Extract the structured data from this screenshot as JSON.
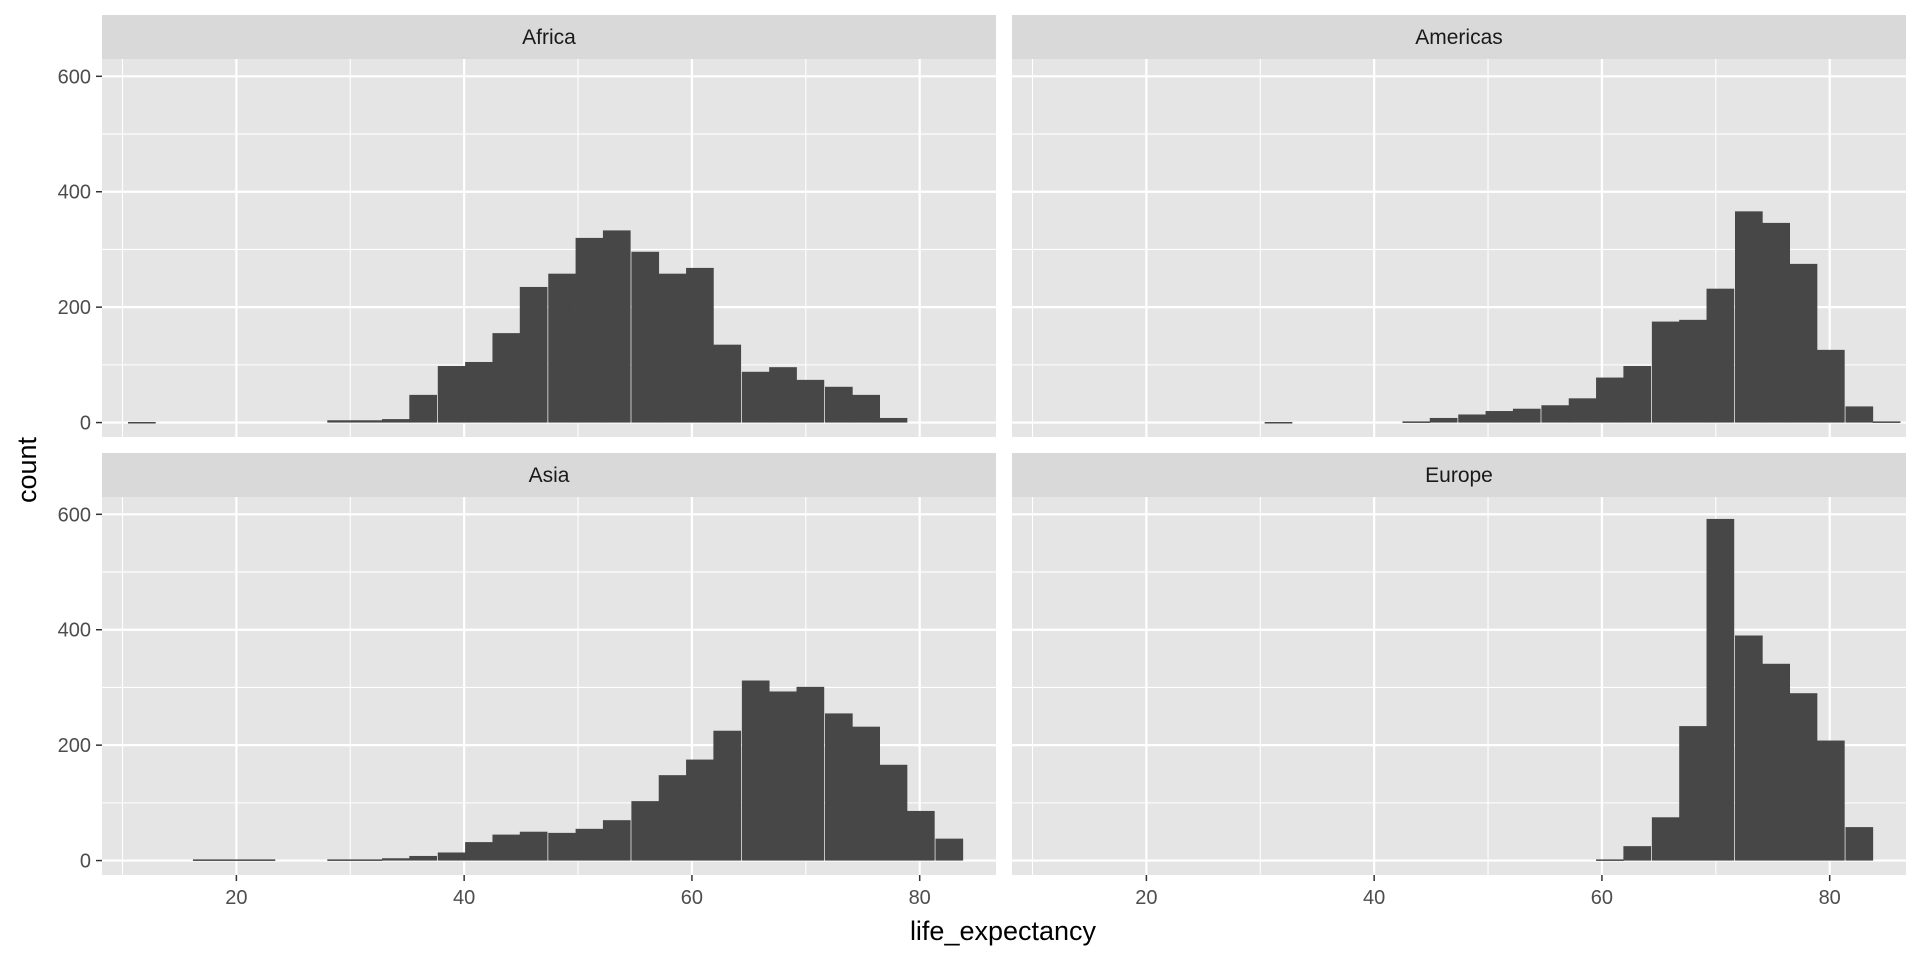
{
  "chart_data": {
    "type": "bar",
    "subtype": "histogram",
    "facet_layout": "2x2",
    "xlabel": "life_expectancy",
    "ylabel": "count",
    "xlim": [
      8.2,
      86.7
    ],
    "ylim": [
      -25,
      630
    ],
    "x_ticks": [
      20,
      40,
      60,
      80
    ],
    "y_ticks": [
      0,
      200,
      400,
      600
    ],
    "bin_width": 2.43,
    "grid": true,
    "legend": "none",
    "colors": {
      "panel_background": "#e5e5e5",
      "strip_background": "#d9d9d9",
      "grid": "#ffffff",
      "bar_fill": "#474747"
    },
    "facets": [
      {
        "name": "Africa",
        "bins": [
          {
            "x": 11.7,
            "count": 1
          },
          {
            "x": 29.2,
            "count": 4
          },
          {
            "x": 31.6,
            "count": 4
          },
          {
            "x": 34.0,
            "count": 6
          },
          {
            "x": 36.4,
            "count": 48
          },
          {
            "x": 38.9,
            "count": 98
          },
          {
            "x": 41.3,
            "count": 105
          },
          {
            "x": 43.7,
            "count": 155
          },
          {
            "x": 46.1,
            "count": 235
          },
          {
            "x": 48.6,
            "count": 258
          },
          {
            "x": 51.0,
            "count": 320
          },
          {
            "x": 53.4,
            "count": 333
          },
          {
            "x": 55.9,
            "count": 296
          },
          {
            "x": 58.3,
            "count": 258
          },
          {
            "x": 60.7,
            "count": 268
          },
          {
            "x": 63.1,
            "count": 135
          },
          {
            "x": 65.6,
            "count": 88
          },
          {
            "x": 68.0,
            "count": 96
          },
          {
            "x": 70.4,
            "count": 74
          },
          {
            "x": 72.9,
            "count": 62
          },
          {
            "x": 75.3,
            "count": 48
          },
          {
            "x": 77.7,
            "count": 8
          }
        ]
      },
      {
        "name": "Americas",
        "bins": [
          {
            "x": 31.6,
            "count": 1
          },
          {
            "x": 43.7,
            "count": 2
          },
          {
            "x": 46.1,
            "count": 8
          },
          {
            "x": 48.6,
            "count": 14
          },
          {
            "x": 51.0,
            "count": 20
          },
          {
            "x": 53.4,
            "count": 24
          },
          {
            "x": 55.9,
            "count": 30
          },
          {
            "x": 58.3,
            "count": 42
          },
          {
            "x": 60.7,
            "count": 78
          },
          {
            "x": 63.1,
            "count": 98
          },
          {
            "x": 65.6,
            "count": 175
          },
          {
            "x": 68.0,
            "count": 178
          },
          {
            "x": 70.4,
            "count": 232
          },
          {
            "x": 72.9,
            "count": 366
          },
          {
            "x": 75.3,
            "count": 346
          },
          {
            "x": 77.7,
            "count": 275
          },
          {
            "x": 80.1,
            "count": 126
          },
          {
            "x": 82.6,
            "count": 28
          },
          {
            "x": 85.0,
            "count": 2
          }
        ]
      },
      {
        "name": "Asia",
        "bins": [
          {
            "x": 17.4,
            "count": 2
          },
          {
            "x": 19.8,
            "count": 2
          },
          {
            "x": 22.2,
            "count": 2
          },
          {
            "x": 29.2,
            "count": 2
          },
          {
            "x": 31.6,
            "count": 2
          },
          {
            "x": 34.0,
            "count": 4
          },
          {
            "x": 36.4,
            "count": 8
          },
          {
            "x": 38.9,
            "count": 14
          },
          {
            "x": 41.3,
            "count": 32
          },
          {
            "x": 43.7,
            "count": 45
          },
          {
            "x": 46.1,
            "count": 50
          },
          {
            "x": 48.6,
            "count": 48
          },
          {
            "x": 51.0,
            "count": 55
          },
          {
            "x": 53.4,
            "count": 70
          },
          {
            "x": 55.9,
            "count": 103
          },
          {
            "x": 58.3,
            "count": 148
          },
          {
            "x": 60.7,
            "count": 175
          },
          {
            "x": 63.1,
            "count": 225
          },
          {
            "x": 65.6,
            "count": 312
          },
          {
            "x": 68.0,
            "count": 293
          },
          {
            "x": 70.4,
            "count": 301
          },
          {
            "x": 72.9,
            "count": 255
          },
          {
            "x": 75.3,
            "count": 232
          },
          {
            "x": 77.7,
            "count": 166
          },
          {
            "x": 80.1,
            "count": 86
          },
          {
            "x": 82.6,
            "count": 38
          }
        ]
      },
      {
        "name": "Europe",
        "bins": [
          {
            "x": 60.7,
            "count": 2
          },
          {
            "x": 63.1,
            "count": 25
          },
          {
            "x": 65.6,
            "count": 75
          },
          {
            "x": 68.0,
            "count": 233
          },
          {
            "x": 70.4,
            "count": 592
          },
          {
            "x": 72.9,
            "count": 390
          },
          {
            "x": 75.3,
            "count": 341
          },
          {
            "x": 77.7,
            "count": 290
          },
          {
            "x": 80.1,
            "count": 208
          },
          {
            "x": 82.6,
            "count": 58
          }
        ]
      }
    ]
  }
}
